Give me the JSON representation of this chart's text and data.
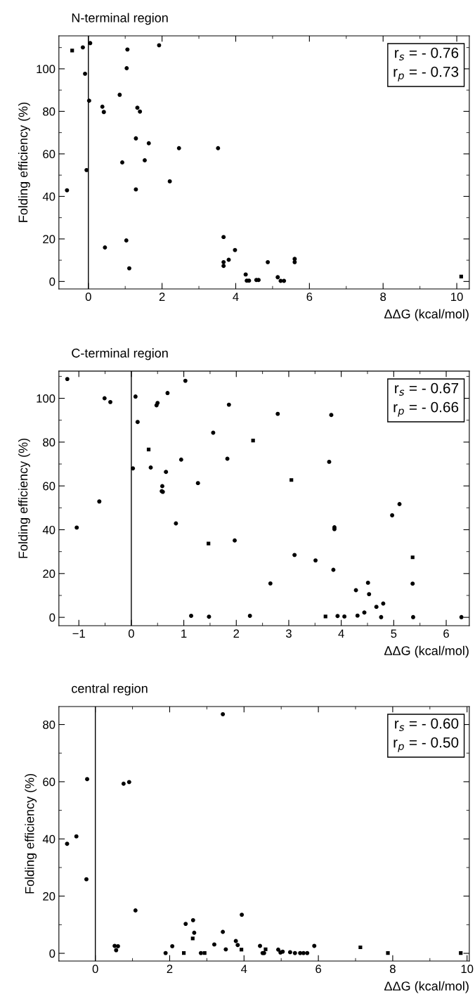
{
  "chart_data": [
    {
      "type": "scatter",
      "title": "N-terminal region",
      "xlabel": "ΔΔG (kcal/mol)",
      "ylabel": "Folding efficiency (%)",
      "annotations": [
        "r$_{s}$ = - 0.76\nr$_{p}$ = - 0.73"
      ],
      "xlim": [
        -0.8,
        10.34
      ],
      "ylim": [
        -3.5,
        115.5
      ],
      "xticks": [
        0,
        2,
        4,
        6,
        8,
        10
      ],
      "yticks": [
        0,
        20,
        40,
        60,
        80,
        100
      ],
      "grid": false,
      "ref_lines": [
        {
          "axis": "x",
          "value": 0,
          "label": null,
          "color": "#000000"
        }
      ],
      "series": [
        {
          "color": "#000000",
          "marker": "circle",
          "x": [
            -0.15,
            0.05,
            -0.09,
            0.02,
            -0.05,
            -0.58,
            1.06,
            1.04,
            1.92,
            0.85,
            0.38,
            0.42,
            1.33,
            1.4,
            1.29,
            1.64,
            2.46,
            3.52,
            0.92,
            1.53,
            2.21,
            1.29,
            0.45,
            1.03,
            1.11,
            3.67,
            3.67,
            3.67,
            3.81,
            3.98,
            4.27,
            4.3,
            4.36,
            4.56,
            4.62,
            4.87,
            5.14,
            5.22,
            5.31,
            5.6,
            5.6
          ],
          "values": [
            110.1,
            112.1,
            97.7,
            85.0,
            52.4,
            42.9,
            109.1,
            100.3,
            111.1,
            87.8,
            82.2,
            79.7,
            81.7,
            79.9,
            67.3,
            65.0,
            62.7,
            62.7,
            56.0,
            57.0,
            47.1,
            43.3,
            16.0,
            19.3,
            6.2,
            20.9,
            9.1,
            7.3,
            10.2,
            14.8,
            3.3,
            0.4,
            0.4,
            0.7,
            0.7,
            9.1,
            2.0,
            0.3,
            0.3,
            10.6,
            9.1
          ]
        },
        {
          "color": "#000000",
          "marker": "square",
          "x": [
            -0.44,
            10.12
          ],
          "values": [
            108.6,
            2.3
          ]
        }
      ]
    },
    {
      "type": "scatter",
      "title": "C-terminal region",
      "xlabel": "ΔΔG (kcal/mol)",
      "ylabel": "Folding efficiency (%)",
      "annotations": [
        "r$_{s}$ = - 0.67\nr$_{p}$ = - 0.66"
      ],
      "xlim": [
        -1.38,
        6.44
      ],
      "ylim": [
        -3.8,
        112.4
      ],
      "xticks": [
        {
          "value": -1,
          "label": "−1"
        },
        0,
        1,
        2,
        3,
        4,
        5,
        6
      ],
      "yticks": [
        0,
        20,
        40,
        60,
        80,
        100
      ],
      "grid": false,
      "ref_lines": [
        {
          "axis": "x",
          "value": 0,
          "label": null,
          "color": "#000000"
        }
      ],
      "series": [
        {
          "color": "#000000",
          "marker": "circle",
          "x": [
            -1.22,
            -1.04,
            -0.61,
            -0.51,
            -0.4,
            0.03,
            0.08,
            0.12,
            0.37,
            0.48,
            0.5,
            0.69,
            0.66,
            0.59,
            0.58,
            0.6,
            0.95,
            0.85,
            1.03,
            1.14,
            1.27,
            1.48,
            1.56,
            1.83,
            1.86,
            1.97,
            2.26,
            2.65,
            2.79,
            3.11,
            3.51,
            3.81,
            3.77,
            3.85,
            3.87,
            3.87,
            3.93,
            4.06,
            4.28,
            4.31,
            4.44,
            4.51,
            4.53,
            4.67,
            4.76,
            4.8,
            4.97,
            5.11,
            5.36,
            5.37,
            6.29
          ],
          "values": [
            108.8,
            41.0,
            52.9,
            100.0,
            98.3,
            68.0,
            100.8,
            89.2,
            68.4,
            96.8,
            97.9,
            102.4,
            66.4,
            59.9,
            57.6,
            57.3,
            72.0,
            42.9,
            108.0,
            0.7,
            61.3,
            0.3,
            84.3,
            72.4,
            97.1,
            35.1,
            0.7,
            15.5,
            92.9,
            28.5,
            26.0,
            92.4,
            71.0,
            21.7,
            41.1,
            40.3,
            0.6,
            0.4,
            12.4,
            0.8,
            2.2,
            15.8,
            10.6,
            4.8,
            0.1,
            6.3,
            46.6,
            51.7,
            15.4,
            0.1,
            0.1
          ]
        },
        {
          "color": "#000000",
          "marker": "square",
          "x": [
            0.33,
            2.32,
            1.47,
            3.05,
            3.7,
            5.36
          ],
          "values": [
            76.6,
            80.7,
            33.7,
            62.7,
            0.4,
            27.4
          ]
        }
      ]
    },
    {
      "type": "scatter",
      "title": "central region",
      "xlabel": "ΔΔG (kcal/mol)",
      "ylabel": "Folding efficiency (%)",
      "annotations": [
        "r$_{s}$ = - 0.60\nr$_{p}$ = - 0.50"
      ],
      "xlim": [
        -0.98,
        10.06
      ],
      "ylim": [
        -2.7,
        86.3
      ],
      "xticks": [
        0,
        2,
        4,
        6,
        8,
        10
      ],
      "yticks": [
        0,
        20,
        40,
        60,
        80
      ],
      "grid": false,
      "ref_lines": [
        {
          "axis": "x",
          "value": 0,
          "label": null,
          "color": "#000000"
        }
      ],
      "series": [
        {
          "color": "#000000",
          "marker": "circle",
          "x": [
            -0.76,
            -0.51,
            -0.22,
            -0.24,
            0.76,
            0.91,
            1.08,
            0.52,
            0.61,
            0.56,
            1.89,
            2.07,
            2.43,
            2.63,
            2.66,
            2.84,
            3.2,
            3.43,
            3.43,
            3.51,
            3.78,
            3.83,
            3.94,
            4.43,
            4.5,
            4.54,
            4.92,
            4.98,
            5.04,
            5.24,
            5.37,
            5.51,
            5.6,
            5.7,
            5.89
          ],
          "values": [
            38.3,
            40.9,
            60.9,
            25.9,
            59.3,
            59.9,
            15.0,
            2.6,
            2.5,
            1.1,
            0.1,
            2.5,
            10.3,
            11.6,
            7.2,
            0.1,
            3.1,
            83.6,
            7.5,
            1.4,
            4.3,
            2.9,
            13.5,
            2.6,
            0.1,
            0.1,
            1.3,
            0.3,
            0.6,
            0.4,
            0.1,
            0.1,
            0.1,
            0.1,
            2.6
          ]
        },
        {
          "color": "#000000",
          "marker": "square",
          "x": [
            2.38,
            2.62,
            2.94,
            3.93,
            4.58,
            7.13,
            7.87,
            9.83
          ],
          "values": [
            0.1,
            5.2,
            0.1,
            1.3,
            1.4,
            2.1,
            0.1,
            0.1
          ]
        }
      ]
    }
  ]
}
